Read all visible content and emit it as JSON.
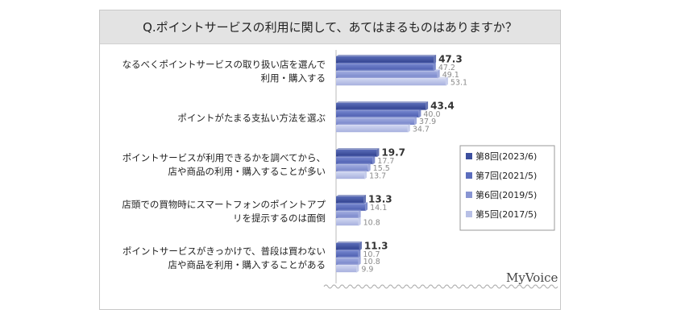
{
  "title": "Q.ポイントサービスの利用に関して、あてはまるものはありますか？",
  "brand": "MyVoice",
  "chart_data": {
    "type": "bar",
    "orientation": "horizontal",
    "categories": [
      [
        "なるべくポイントサービスの取り扱い店を選んで",
        "利用・購入する"
      ],
      [
        "ポイントがたまる支払い方法を選ぶ"
      ],
      [
        "ポイントサービスが利用できるかを調べてから、",
        "店や商品の利用・購入することが多い"
      ],
      [
        "店頭での買物時にスマートフォンのポイントアプ",
        "リを提示するのは面倒"
      ],
      [
        "ポイントサービスがきっかけで、普段は買わない",
        "店や商品を利用・購入することがある"
      ]
    ],
    "series": [
      {
        "name": "第8回(2023/6)",
        "color": "#3c4f9e",
        "values": [
          47.3,
          43.4,
          19.7,
          13.3,
          11.3
        ]
      },
      {
        "name": "第7回(2021/5)",
        "color": "#5b6dbd",
        "values": [
          47.2,
          40.0,
          17.7,
          14.1,
          10.7
        ]
      },
      {
        "name": "第6回(2019/5)",
        "color": "#8895d3",
        "values": [
          49.1,
          37.9,
          15.5,
          10.8,
          10.8
        ]
      },
      {
        "name": "第5回(2017/5)",
        "color": "#b8c0e6",
        "values": [
          53.1,
          34.7,
          13.7,
          10.8,
          9.9
        ]
      }
    ],
    "value_labels": [
      [
        "47.3",
        "43.4",
        "19.7",
        "13.3",
        "11.3"
      ],
      [
        "47.2",
        "40.0",
        "17.7",
        "14.1",
        "10.7"
      ],
      [
        "49.1",
        "37.9",
        "15.5",
        "",
        "10.8"
      ],
      [
        "53.1",
        "34.7",
        "13.7",
        "10.8",
        "9.9"
      ]
    ],
    "xlim": [
      0,
      100
    ],
    "legend_position": "right",
    "grid": false
  }
}
